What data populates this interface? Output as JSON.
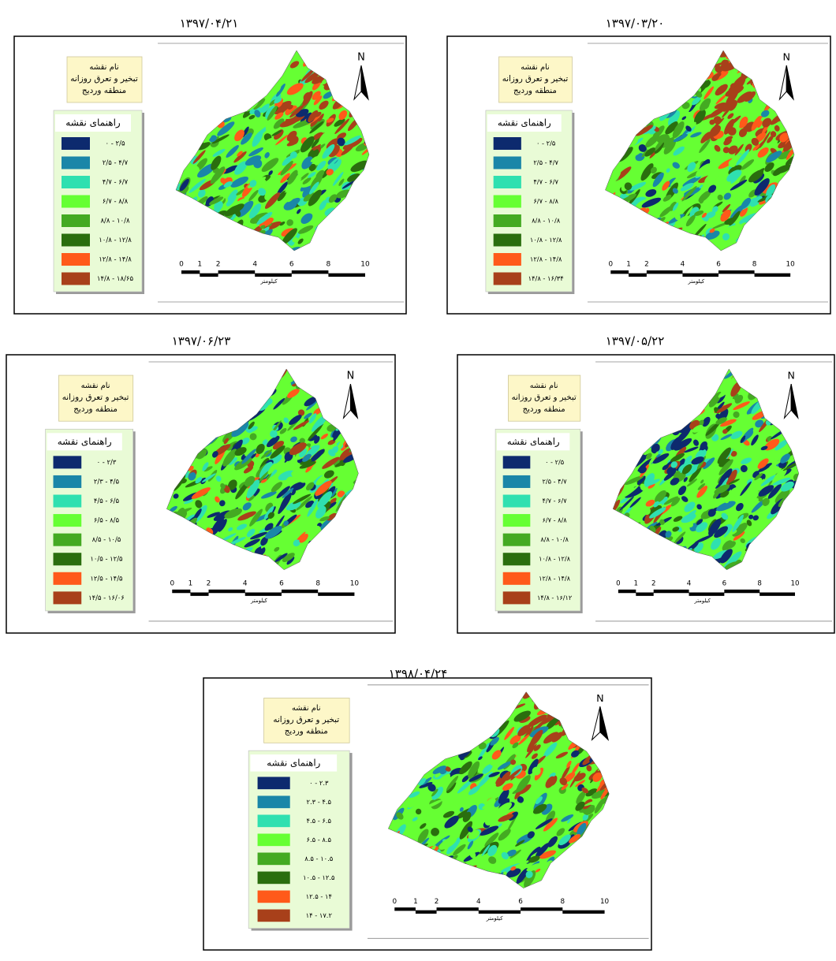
{
  "panels": [
    {
      "date": "۱۳۹۷/۰۴/۲۱",
      "map_name": {
        "heading": "نام نقشه",
        "lines": [
          "تبخیر و تعرق روزانه",
          "منطقه وردیج"
        ]
      },
      "legend": {
        "title": "راهنمای نقشه",
        "classes": [
          {
            "label": "۰ - ۲/۵",
            "color": "#0d2a6e"
          },
          {
            "label": "۲/۵ - ۴/۷",
            "color": "#1a86a8"
          },
          {
            "label": "۴/۷ - ۶/۷",
            "color": "#2fe0b0"
          },
          {
            "label": "۶/۷ - ۸/۸",
            "color": "#66ff33"
          },
          {
            "label": "۸/۸ - ۱۰/۸",
            "color": "#44aa22"
          },
          {
            "label": "۱۰/۸ - ۱۲/۸",
            "color": "#2a6e0e"
          },
          {
            "label": "۱۲/۸ - ۱۴/۸",
            "color": "#ff5a1a"
          },
          {
            "label": "۱۴/۸ - ۱۸/۶۵",
            "color": "#a8401a"
          }
        ]
      },
      "north": "N",
      "scale": {
        "ticks": [
          0,
          1,
          2,
          4,
          6,
          8,
          10
        ],
        "unit": "کیلومتر"
      }
    },
    {
      "date": "۱۳۹۷/۰۳/۲۰",
      "map_name": {
        "heading": "نام نقشه",
        "lines": [
          "تبخیر و تعرق روزانه",
          "منطقه وردیج"
        ]
      },
      "legend": {
        "title": "راهنمای نقشه",
        "classes": [
          {
            "label": "۰ - ۲/۵",
            "color": "#0d2a6e"
          },
          {
            "label": "۲/۵ - ۴/۷",
            "color": "#1a86a8"
          },
          {
            "label": "۴/۷ - ۶/۷",
            "color": "#2fe0b0"
          },
          {
            "label": "۶/۷ - ۸/۸",
            "color": "#66ff33"
          },
          {
            "label": "۸/۸ - ۱۰/۸",
            "color": "#44aa22"
          },
          {
            "label": "۱۰/۸ - ۱۲/۸",
            "color": "#2a6e0e"
          },
          {
            "label": "۱۲/۸ - ۱۴/۸",
            "color": "#ff5a1a"
          },
          {
            "label": "۱۴/۸ - ۱۶/۳۴",
            "color": "#a8401a"
          }
        ]
      },
      "north": "N",
      "scale": {
        "ticks": [
          0,
          1,
          2,
          4,
          6,
          8,
          10
        ],
        "unit": "کیلومتر"
      }
    },
    {
      "date": "۱۳۹۷/۰۶/۲۳",
      "map_name": {
        "heading": "نام نقشه",
        "lines": [
          "تبخیر و تعرق روزانه",
          "منطقه وردیج"
        ]
      },
      "legend": {
        "title": "راهنمای نقشه",
        "classes": [
          {
            "label": "۰ - ۲/۳",
            "color": "#0d2a6e"
          },
          {
            "label": "۲/۳ - ۴/۵",
            "color": "#1a86a8"
          },
          {
            "label": "۴/۵ - ۶/۵",
            "color": "#2fe0b0"
          },
          {
            "label": "۶/۵ - ۸/۵",
            "color": "#66ff33"
          },
          {
            "label": "۸/۵ - ۱۰/۵",
            "color": "#44aa22"
          },
          {
            "label": "۱۰/۵ - ۱۲/۵",
            "color": "#2a6e0e"
          },
          {
            "label": "۱۲/۵ - ۱۴/۵",
            "color": "#ff5a1a"
          },
          {
            "label": "۱۴/۵ - ۱۶/۰۶",
            "color": "#a8401a"
          }
        ]
      },
      "north": "N",
      "scale": {
        "ticks": [
          0,
          1,
          2,
          4,
          6,
          8,
          10
        ],
        "unit": "کیلومتر"
      }
    },
    {
      "date": "۱۳۹۷/۰۵/۲۲",
      "map_name": {
        "heading": "نام نقشه",
        "lines": [
          "تبخیر و تعرق روزانه",
          "منطقه وردیج"
        ]
      },
      "legend": {
        "title": "راهنمای نقشه",
        "classes": [
          {
            "label": "۰ - ۲/۵",
            "color": "#0d2a6e"
          },
          {
            "label": "۲/۵ - ۴/۷",
            "color": "#1a86a8"
          },
          {
            "label": "۴/۷ - ۶/۷",
            "color": "#2fe0b0"
          },
          {
            "label": "۶/۷ - ۸/۸",
            "color": "#66ff33"
          },
          {
            "label": "۸/۸ - ۱۰/۸",
            "color": "#44aa22"
          },
          {
            "label": "۱۰/۸ - ۱۲/۸",
            "color": "#2a6e0e"
          },
          {
            "label": "۱۲/۸ - ۱۴/۸",
            "color": "#ff5a1a"
          },
          {
            "label": "۱۴/۸ - ۱۶/۱۲",
            "color": "#a8401a"
          }
        ]
      },
      "north": "N",
      "scale": {
        "ticks": [
          0,
          1,
          2,
          4,
          6,
          8,
          10
        ],
        "unit": "کیلومتر"
      }
    },
    {
      "date": "۱۳۹۸/۰۴/۲۴",
      "map_name": {
        "heading": "نام نقشه",
        "lines": [
          "تبخیر و تعرق روزانه",
          "منطقه وردیج"
        ]
      },
      "legend": {
        "title": "راهنمای نقشه",
        "classes": [
          {
            "label": "۰ - ۲.۳",
            "color": "#0d2a6e"
          },
          {
            "label": "۲.۳ - ۴.۵",
            "color": "#1a86a8"
          },
          {
            "label": "۴.۵ - ۶.۵",
            "color": "#2fe0b0"
          },
          {
            "label": "۶.۵ - ۸.۵",
            "color": "#66ff33"
          },
          {
            "label": "۸.۵ - ۱۰.۵",
            "color": "#44aa22"
          },
          {
            "label": "۱۰.۵ - ۱۲.۵",
            "color": "#2a6e0e"
          },
          {
            "label": "۱۲.۵ - ۱۴",
            "color": "#ff5a1a"
          },
          {
            "label": "۱۴ - ۱۷.۲",
            "color": "#a8401a"
          }
        ]
      },
      "north": "N",
      "scale": {
        "ticks": [
          0,
          1,
          2,
          4,
          6,
          8,
          10
        ],
        "unit": "کیلومتر"
      }
    }
  ]
}
